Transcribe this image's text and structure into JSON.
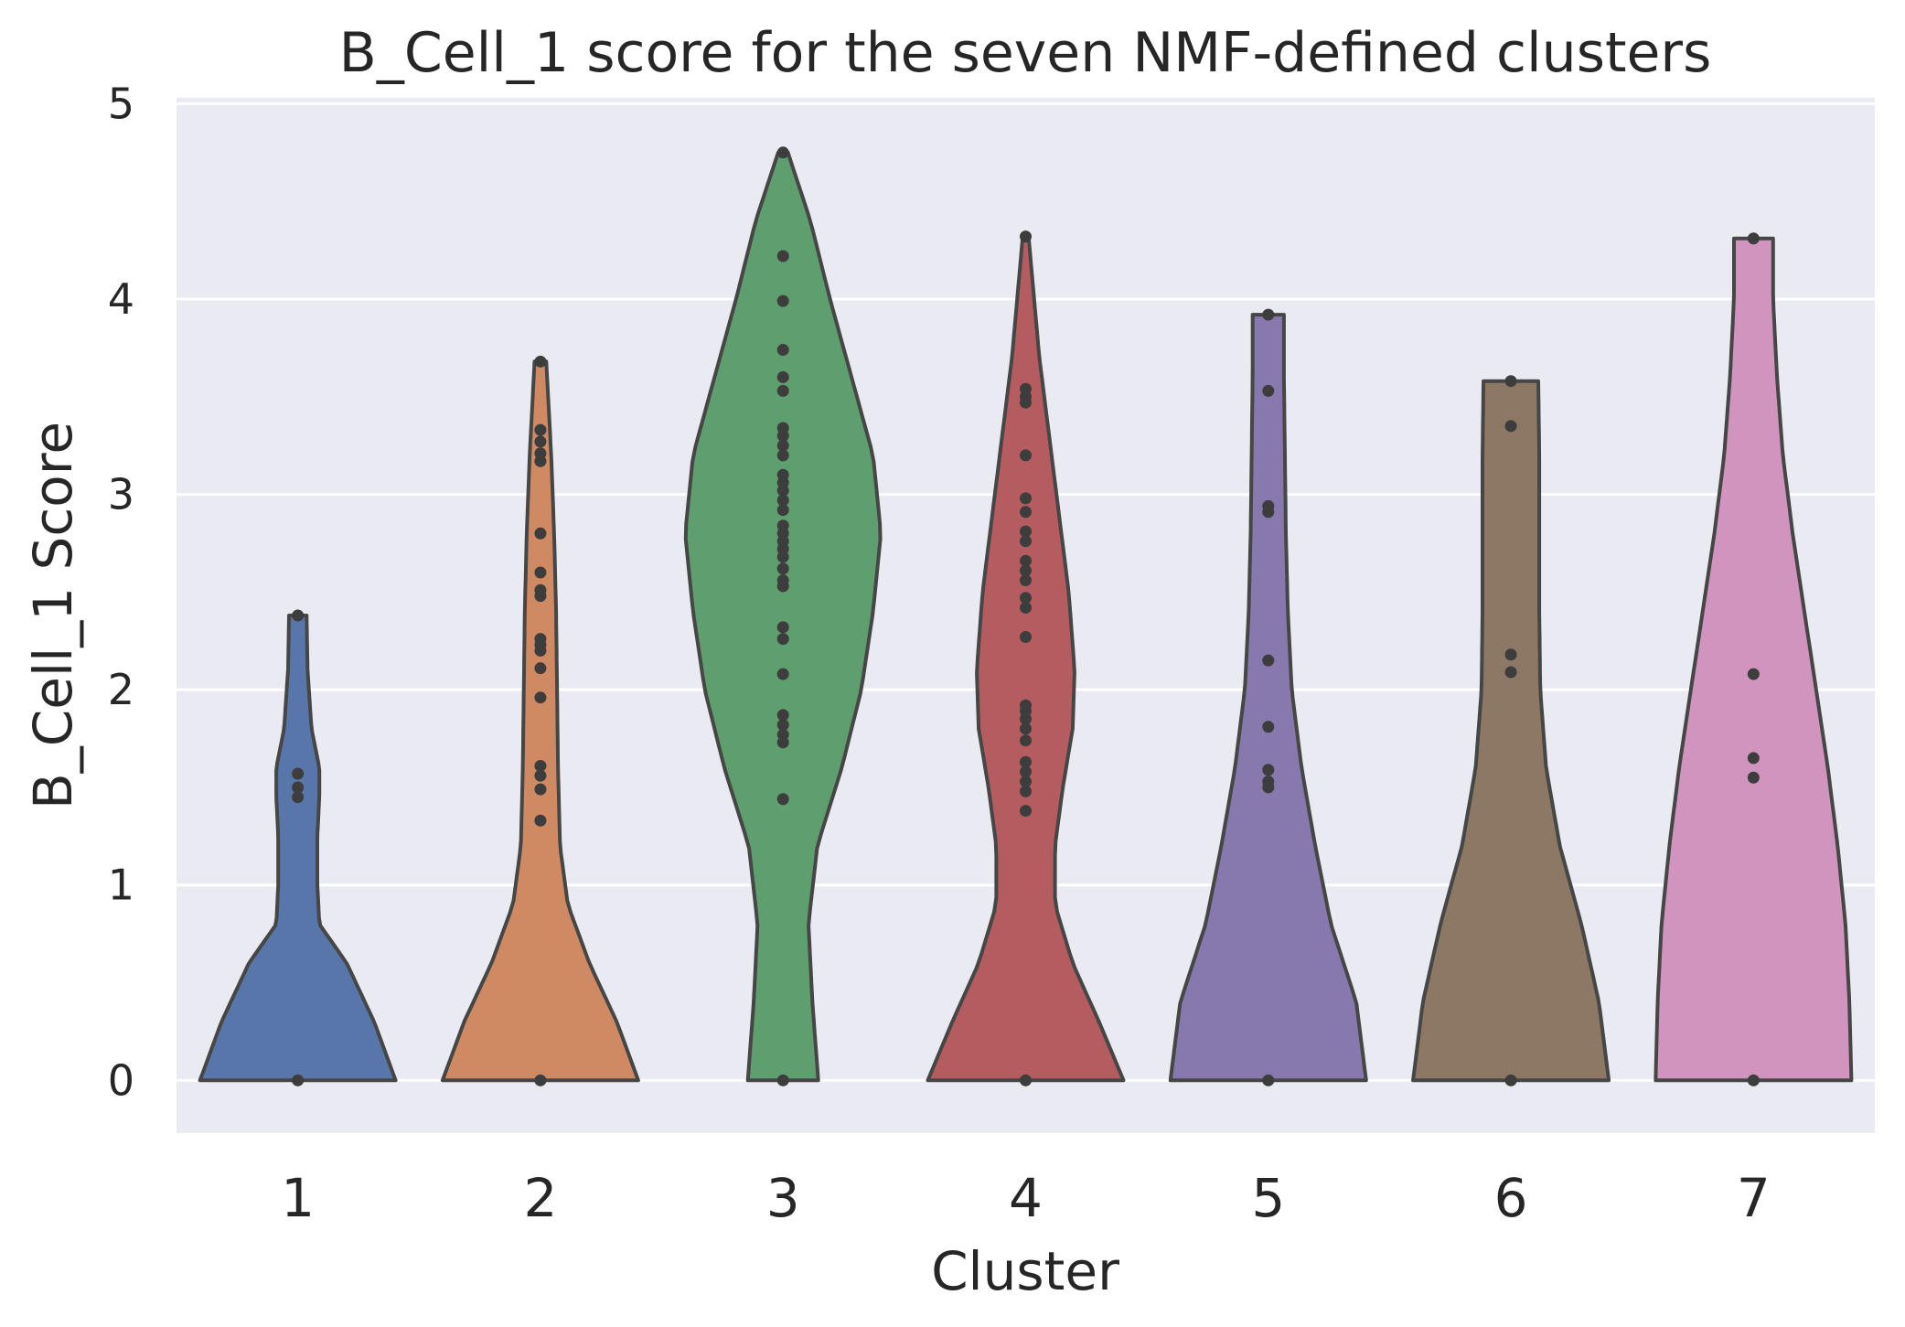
{
  "chart_data": {
    "type": "violin",
    "title": "B_Cell_1 score for the seven NMF-defined clusters",
    "xlabel": "Cluster",
    "ylabel": "B_Cell_1 Score",
    "ylim": [
      -0.27,
      5.03
    ],
    "yticks": [
      0,
      1,
      2,
      3,
      4,
      5
    ],
    "grid": true,
    "background": "#eaeaf2",
    "categories": [
      "1",
      "2",
      "3",
      "4",
      "5",
      "6",
      "7"
    ],
    "series": [
      {
        "category": "1",
        "color": "#5876a9",
        "max": 2.38,
        "points": [
          0,
          1.45,
          1.5,
          1.57,
          2.38
        ],
        "profile": [
          [
            0,
            1.0
          ],
          [
            0.3,
            0.78
          ],
          [
            0.6,
            0.5
          ],
          [
            0.8,
            0.22
          ],
          [
            1.0,
            0.2
          ],
          [
            1.25,
            0.2
          ],
          [
            1.45,
            0.22
          ],
          [
            1.6,
            0.22
          ],
          [
            1.8,
            0.14
          ],
          [
            2.1,
            0.1
          ],
          [
            2.38,
            0.09
          ]
        ]
      },
      {
        "category": "2",
        "color": "#cf8963",
        "max": 3.68,
        "points": [
          0,
          1.33,
          1.49,
          1.56,
          1.61,
          1.96,
          2.11,
          2.2,
          2.23,
          2.26,
          2.48,
          2.51,
          2.6,
          2.8,
          3.17,
          3.21,
          3.27,
          3.33,
          3.68
        ],
        "profile": [
          [
            0,
            1.0
          ],
          [
            0.3,
            0.78
          ],
          [
            0.6,
            0.5
          ],
          [
            0.9,
            0.28
          ],
          [
            1.2,
            0.2
          ],
          [
            1.6,
            0.18
          ],
          [
            2.0,
            0.17
          ],
          [
            2.4,
            0.16
          ],
          [
            2.8,
            0.14
          ],
          [
            3.2,
            0.11
          ],
          [
            3.68,
            0.06
          ]
        ]
      },
      {
        "category": "3",
        "color": "#5f9e6e",
        "max": 4.75,
        "points": [
          0,
          1.44,
          1.73,
          1.77,
          1.82,
          1.87,
          2.08,
          2.26,
          2.32,
          2.53,
          2.56,
          2.62,
          2.68,
          2.72,
          2.76,
          2.8,
          2.84,
          2.92,
          2.97,
          3.02,
          3.06,
          3.1,
          3.2,
          3.25,
          3.3,
          3.34,
          3.53,
          3.6,
          3.74,
          3.99,
          4.22,
          4.75
        ],
        "profile": [
          [
            0,
            0.36
          ],
          [
            0.4,
            0.3
          ],
          [
            0.8,
            0.26
          ],
          [
            1.2,
            0.35
          ],
          [
            1.6,
            0.6
          ],
          [
            2.0,
            0.8
          ],
          [
            2.4,
            0.92
          ],
          [
            2.8,
            1.0
          ],
          [
            3.2,
            0.92
          ],
          [
            3.6,
            0.7
          ],
          [
            4.0,
            0.48
          ],
          [
            4.4,
            0.28
          ],
          [
            4.75,
            0.05
          ]
        ]
      },
      {
        "category": "4",
        "color": "#b55c60",
        "max": 4.32,
        "points": [
          0,
          1.38,
          1.48,
          1.53,
          1.58,
          1.63,
          1.74,
          1.8,
          1.85,
          1.89,
          1.92,
          2.27,
          2.42,
          2.47,
          2.56,
          2.61,
          2.66,
          2.76,
          2.81,
          2.91,
          2.98,
          3.2,
          3.47,
          3.5,
          3.54,
          4.32
        ],
        "profile": [
          [
            0,
            1.0
          ],
          [
            0.3,
            0.75
          ],
          [
            0.6,
            0.48
          ],
          [
            0.9,
            0.3
          ],
          [
            1.2,
            0.3
          ],
          [
            1.5,
            0.38
          ],
          [
            1.8,
            0.48
          ],
          [
            2.1,
            0.5
          ],
          [
            2.5,
            0.44
          ],
          [
            2.9,
            0.34
          ],
          [
            3.3,
            0.24
          ],
          [
            3.7,
            0.14
          ],
          [
            4.32,
            0.03
          ]
        ]
      },
      {
        "category": "5",
        "color": "#8779ad",
        "max": 3.92,
        "points": [
          0,
          1.5,
          1.53,
          1.59,
          1.81,
          2.15,
          2.91,
          2.94,
          3.53,
          3.92
        ],
        "profile": [
          [
            0,
            1.0
          ],
          [
            0.4,
            0.9
          ],
          [
            0.8,
            0.64
          ],
          [
            1.2,
            0.48
          ],
          [
            1.6,
            0.34
          ],
          [
            2.0,
            0.24
          ],
          [
            2.4,
            0.2
          ],
          [
            2.8,
            0.18
          ],
          [
            3.2,
            0.17
          ],
          [
            3.6,
            0.16
          ],
          [
            3.92,
            0.16
          ]
        ]
      },
      {
        "category": "6",
        "color": "#8c7864",
        "max": 3.58,
        "points": [
          0,
          2.09,
          2.18,
          3.35,
          3.58
        ],
        "profile": [
          [
            0,
            1.0
          ],
          [
            0.4,
            0.9
          ],
          [
            0.8,
            0.72
          ],
          [
            1.2,
            0.5
          ],
          [
            1.6,
            0.36
          ],
          [
            2.0,
            0.3
          ],
          [
            2.4,
            0.29
          ],
          [
            2.8,
            0.29
          ],
          [
            3.2,
            0.29
          ],
          [
            3.58,
            0.28
          ]
        ]
      },
      {
        "category": "7",
        "color": "#d094be",
        "max": 4.31,
        "points": [
          0,
          1.55,
          1.65,
          2.08,
          4.31
        ],
        "profile": [
          [
            0,
            1.0
          ],
          [
            0.4,
            0.98
          ],
          [
            0.8,
            0.94
          ],
          [
            1.2,
            0.86
          ],
          [
            1.6,
            0.76
          ],
          [
            2.0,
            0.64
          ],
          [
            2.4,
            0.52
          ],
          [
            2.8,
            0.4
          ],
          [
            3.2,
            0.3
          ],
          [
            3.6,
            0.24
          ],
          [
            4.0,
            0.2
          ],
          [
            4.31,
            0.2
          ]
        ]
      }
    ]
  }
}
